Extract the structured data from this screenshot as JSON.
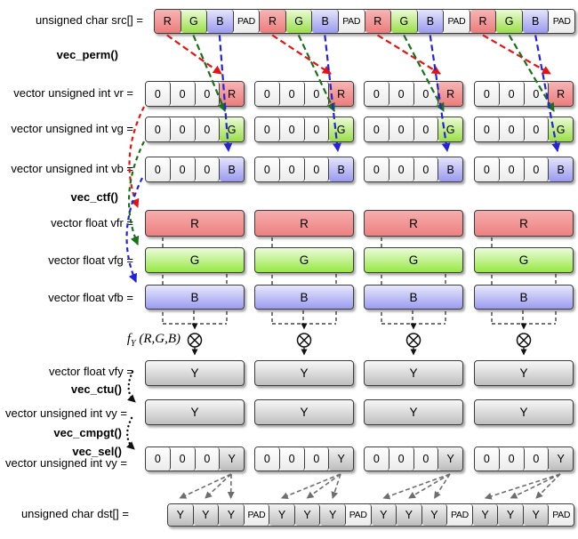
{
  "labels": {
    "src": "unsigned char src[] =",
    "vec_perm": "vec_perm()",
    "vr": "vector unsigned int vr =",
    "vg": "vector unsigned int vg =",
    "vb": "vector unsigned int vb =",
    "vec_ctf": "vec_ctf()",
    "vfr": "vector float vfr =",
    "vfg": "vector float vfg =",
    "vfb": "vector float vfb =",
    "fy_func": "f",
    "fy_sub": "Y",
    "fy_args": "(R,G,B)",
    "vfy": "vector float vfy =",
    "vec_ctu": "vec_ctu()",
    "vy": "vector unsigned int vy =",
    "vec_cmpgt": "vec_cmpgt()",
    "vec_sel": "vec_sel()",
    "vy2": "vector unsigned int vy =",
    "dst": "unsigned char dst[] ="
  },
  "rows": {
    "src_cells": [
      "R",
      "G",
      "B",
      "PAD",
      "R",
      "G",
      "B",
      "PAD",
      "R",
      "G",
      "B",
      "PAD",
      "R",
      "G",
      "B",
      "PAD"
    ],
    "vr_groups": [
      [
        "0",
        "0",
        "0",
        "R"
      ],
      [
        "0",
        "0",
        "0",
        "R"
      ],
      [
        "0",
        "0",
        "0",
        "R"
      ],
      [
        "0",
        "0",
        "0",
        "R"
      ]
    ],
    "vg_groups": [
      [
        "0",
        "0",
        "0",
        "G"
      ],
      [
        "0",
        "0",
        "0",
        "G"
      ],
      [
        "0",
        "0",
        "0",
        "G"
      ],
      [
        "0",
        "0",
        "0",
        "G"
      ]
    ],
    "vb_groups": [
      [
        "0",
        "0",
        "0",
        "B"
      ],
      [
        "0",
        "0",
        "0",
        "B"
      ],
      [
        "0",
        "0",
        "0",
        "B"
      ],
      [
        "0",
        "0",
        "0",
        "B"
      ]
    ],
    "vfr_bars": [
      "R",
      "R",
      "R",
      "R"
    ],
    "vfg_bars": [
      "G",
      "G",
      "G",
      "G"
    ],
    "vfb_bars": [
      "B",
      "B",
      "B",
      "B"
    ],
    "vfy_bars": [
      "Y",
      "Y",
      "Y",
      "Y"
    ],
    "vy_bars": [
      "Y",
      "Y",
      "Y",
      "Y"
    ],
    "vy2_groups": [
      [
        "0",
        "0",
        "0",
        "Y"
      ],
      [
        "0",
        "0",
        "0",
        "Y"
      ],
      [
        "0",
        "0",
        "0",
        "Y"
      ],
      [
        "0",
        "0",
        "0",
        "Y"
      ]
    ],
    "dst_cells": [
      "Y",
      "Y",
      "Y",
      "PAD",
      "Y",
      "Y",
      "Y",
      "PAD",
      "Y",
      "Y",
      "Y",
      "PAD",
      "Y",
      "Y",
      "Y",
      "PAD"
    ]
  },
  "colors": {
    "arrow_red": "#e51414",
    "arrow_green": "#1b701b",
    "arrow_blue": "#2323d8",
    "arrow_black": "#111111",
    "arrow_gray": "#6e6e6e",
    "cell_red": "#ec7d7d",
    "cell_green": "#9ade49",
    "cell_blue": "#9a9aef",
    "cell_gray": "#bcbcbc"
  },
  "operator": {
    "symbol_name": "multiply-circle"
  }
}
